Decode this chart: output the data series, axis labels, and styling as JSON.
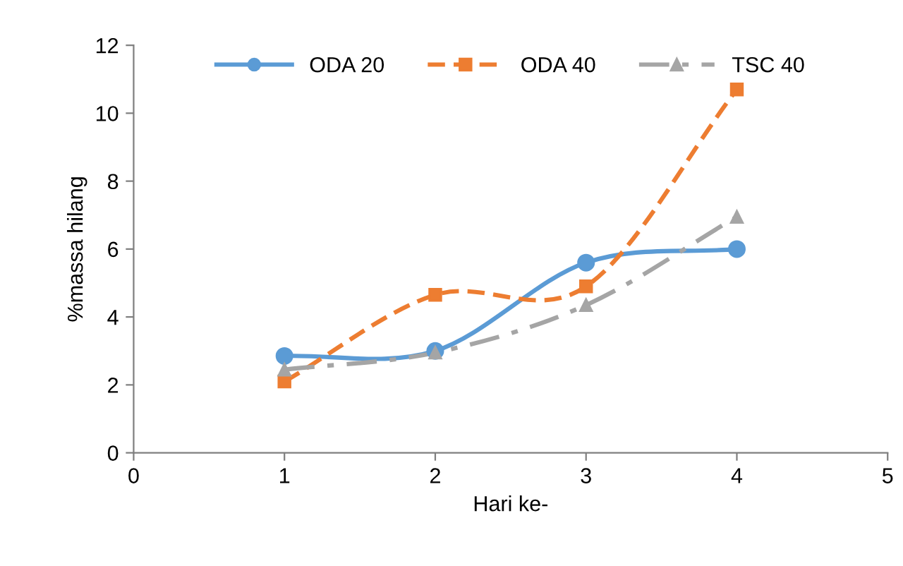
{
  "chart_data": {
    "type": "line",
    "xlabel": "Hari ke-",
    "ylabel": "%massa hilang",
    "x": [
      1,
      2,
      3,
      4
    ],
    "series": [
      {
        "name": "ODA 20",
        "color": "#5b9bd5",
        "values": [
          2.85,
          3.0,
          5.6,
          6.0
        ],
        "marker": "circle",
        "line_style": "solid"
      },
      {
        "name": "ODA 40",
        "color": "#ed7d31",
        "values": [
          2.1,
          4.65,
          4.9,
          10.7
        ],
        "marker": "square",
        "line_style": "dashed"
      },
      {
        "name": "TSC 40",
        "color": "#a5a5a5",
        "values": [
          2.45,
          2.95,
          4.35,
          6.95
        ],
        "marker": "triangle",
        "line_style": "dashdot"
      }
    ],
    "xlim": [
      0,
      5
    ],
    "xticks": [
      0,
      1,
      2,
      3,
      4,
      5
    ],
    "ylim": [
      0,
      12
    ],
    "yticks": [
      0,
      2,
      4,
      6,
      8,
      10,
      12
    ],
    "legend": "top",
    "grid": false
  }
}
